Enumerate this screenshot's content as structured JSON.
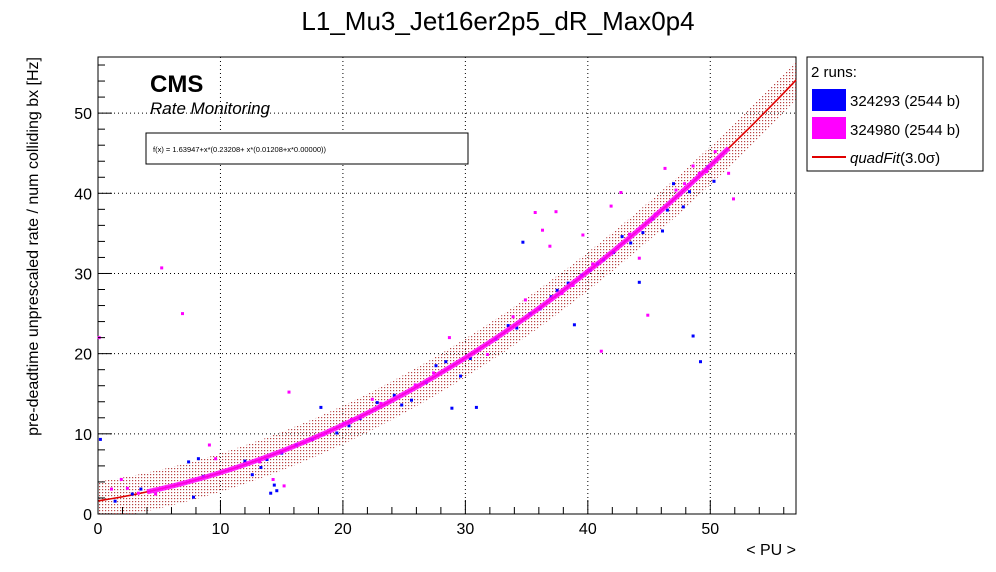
{
  "chart_data": {
    "type": "scatter",
    "title": "L1_Mu3_Jet16er2p5_dR_Max0p4",
    "xlabel": "< PU >",
    "ylabel": "pre-deadtime unprescaled rate / num colliding bx [Hz]",
    "xlim": [
      0,
      57
    ],
    "ylim": [
      0,
      57
    ],
    "x_ticks": [
      "0",
      "10",
      "20",
      "30",
      "40",
      "50"
    ],
    "y_ticks": [
      "0",
      "10",
      "20",
      "30",
      "40",
      "50"
    ],
    "grid": true,
    "legend_placement": "right-outside-top",
    "legend_header": "2 runs:",
    "brand": "CMS",
    "brand_subtitle": "Rate Monitoring",
    "fit_formula": "f(x) = 1.63947+x*(0.23208+ x*(0.01208+x*0.00000))",
    "fit": {
      "name": "quadFit(3.0σ)",
      "name_main": "quadFit",
      "name_suffix": "(3.0σ)",
      "coefficients": [
        1.63947,
        0.23208,
        0.01208
      ],
      "band_halfwidth": 2.4,
      "color": "#e00000",
      "band_color": "#b03030"
    },
    "series": [
      {
        "name": "324293 (2544 b)",
        "color": "#0000ff",
        "x": [
          0.2,
          1.4,
          2.8,
          3.5,
          7.4,
          7.8,
          8.2,
          8.6,
          12.0,
          12.6,
          13.3,
          13.8,
          14.1,
          14.4,
          14.6,
          15.0,
          16.2,
          17.5,
          18.2,
          19.5,
          20.5,
          21.4,
          22.8,
          24.2,
          24.8,
          25.6,
          26.8,
          27.6,
          28.4,
          28.9,
          29.6,
          30.4,
          30.9,
          32.5,
          33.5,
          34.2,
          34.7,
          35.3,
          36.1,
          37.0,
          37.5,
          38.4,
          38.9,
          39.5,
          40.2,
          40.8,
          41.3,
          42.1,
          42.8,
          43.5,
          44.2,
          44.5,
          45.3,
          46.1,
          46.5,
          47.0,
          47.8,
          48.3,
          48.6,
          49.2,
          49.8,
          50.3
        ],
        "y": [
          9.3,
          1.6,
          2.5,
          3.1,
          6.5,
          2.1,
          6.9,
          4.7,
          6.6,
          4.9,
          5.8,
          6.8,
          2.6,
          3.6,
          2.9,
          7.6,
          8.6,
          9.3,
          13.3,
          10.1,
          11.0,
          11.9,
          13.9,
          14.8,
          13.6,
          14.2,
          16.4,
          18.5,
          19.0,
          13.2,
          17.2,
          19.4,
          13.3,
          21.8,
          23.5,
          23.2,
          33.9,
          25.0,
          25.6,
          27.1,
          27.9,
          28.8,
          23.6,
          29.8,
          30.4,
          31.2,
          31.7,
          32.6,
          34.6,
          33.8,
          28.9,
          35.1,
          36.8,
          35.3,
          37.9,
          41.2,
          38.3,
          40.2,
          22.2,
          19.0,
          43.3,
          41.5
        ]
      },
      {
        "name": "324980 (2544 b)",
        "color": "#ff00ff",
        "x": [
          0.1,
          1.1,
          1.9,
          2.4,
          3.3,
          4.7,
          5.2,
          6.9,
          9.1,
          9.6,
          13.2,
          14.3,
          15.2,
          15.6,
          16.9,
          18.4,
          20.1,
          20.7,
          22.4,
          23.1,
          25.9,
          27.4,
          28.7,
          31.8,
          33.9,
          34.9,
          35.7,
          36.3,
          36.9,
          37.4,
          37.9,
          38.8,
          39.6,
          40.4,
          41.1,
          41.9,
          42.7,
          43.4,
          44.2,
          44.9,
          45.5,
          46.3,
          47.2,
          47.9,
          48.6,
          49.1,
          49.7,
          50.4,
          51.5,
          51.9
        ],
        "y": [
          22.0,
          3.1,
          4.3,
          3.2,
          2.6,
          2.5,
          30.7,
          25.0,
          8.6,
          6.9,
          6.5,
          4.3,
          3.5,
          15.2,
          8.9,
          9.9,
          11.3,
          11.8,
          14.3,
          13.8,
          16.1,
          17.6,
          22.0,
          19.9,
          24.6,
          26.7,
          37.6,
          35.4,
          33.4,
          37.7,
          27.5,
          28.5,
          34.8,
          31.2,
          20.3,
          38.4,
          40.1,
          34.9,
          31.9,
          24.8,
          37.4,
          43.1,
          40.4,
          41.2,
          43.4,
          42.5,
          42.7,
          45.2,
          42.5,
          39.3
        ]
      }
    ]
  }
}
